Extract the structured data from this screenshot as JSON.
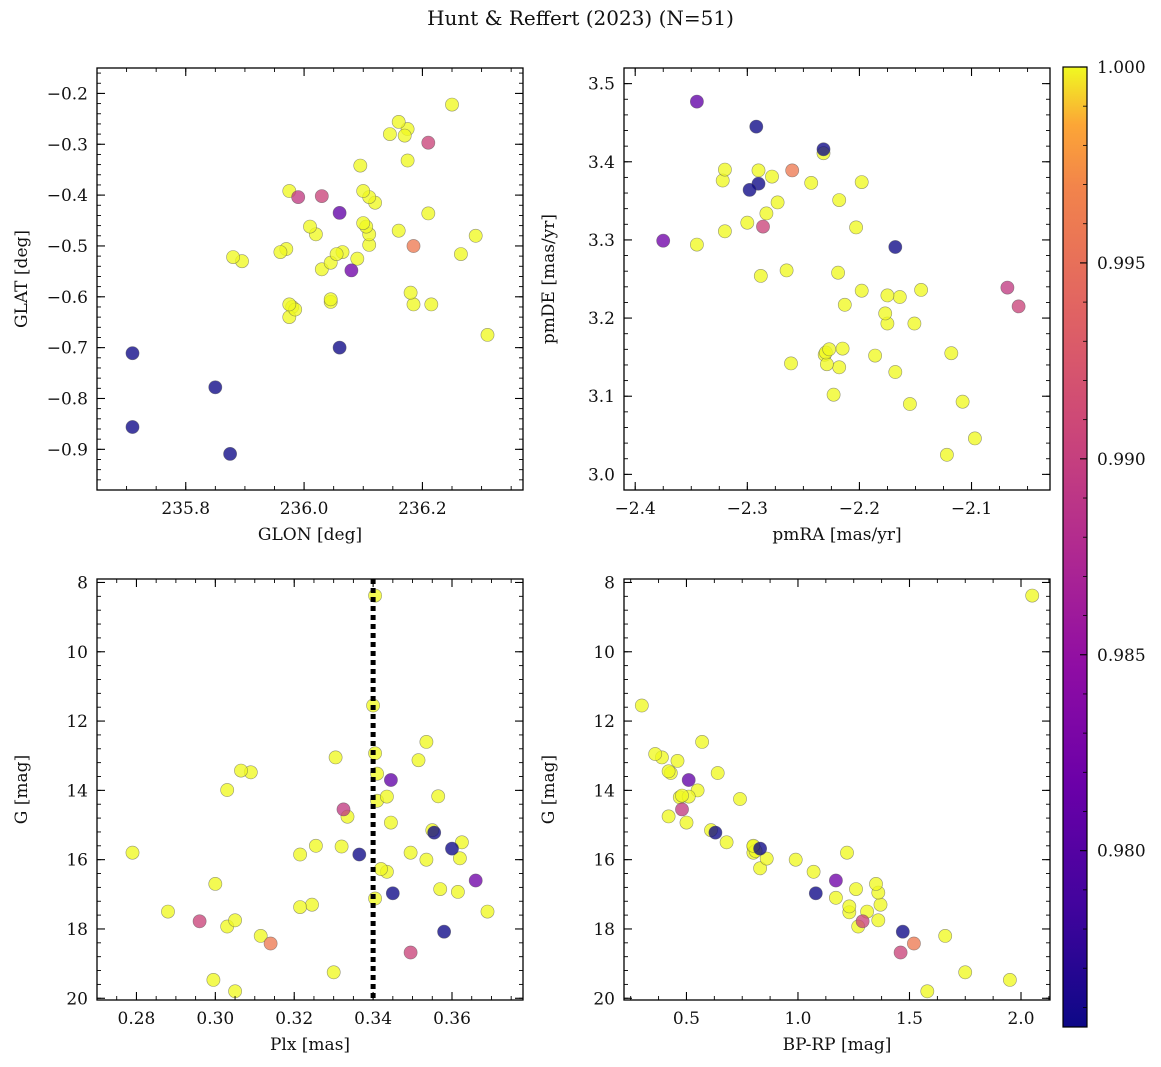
{
  "figure": {
    "title": "Hunt & Reffert (2023) (N=51)"
  },
  "colorbar": {
    "min": 0.9755,
    "max": 1.0,
    "ticks": [
      "0.980",
      "0.985",
      "0.990",
      "0.995",
      "1.000"
    ],
    "tick_values": [
      0.98,
      0.985,
      0.99,
      0.995,
      1.0
    ],
    "colormap": "plasma"
  },
  "reference_line": {
    "panel": "plx",
    "x": 0.34,
    "style": "dotted",
    "color": "#000000"
  },
  "chart_data": [
    {
      "id": "pos",
      "type": "scatter",
      "title": "",
      "xlabel": "GLON [deg]",
      "ylabel": "GLAT [deg]",
      "xlim": [
        235.65,
        236.37
      ],
      "ylim": [
        -0.98,
        -0.15
      ],
      "xticks": [
        235.8,
        236.0,
        236.2
      ],
      "xticklabels": [
        "235.8",
        "236.0",
        "236.2"
      ],
      "yticks": [
        -0.9,
        -0.8,
        -0.7,
        -0.6,
        -0.5,
        -0.4,
        -0.3,
        -0.2
      ],
      "yticklabels": [
        "−0.9",
        "−0.8",
        "−0.7",
        "−0.6",
        "−0.5",
        "−0.4",
        "−0.3",
        "−0.2"
      ],
      "yinvert": false,
      "points": [
        [
          235.71,
          -0.711
        ],
        [
          235.71,
          -0.856
        ],
        [
          235.85,
          -0.778
        ],
        [
          235.875,
          -0.909
        ],
        [
          236.06,
          -0.7
        ],
        [
          236.06,
          -0.435
        ],
        [
          236.08,
          -0.548
        ],
        [
          235.99,
          -0.404
        ],
        [
          236.03,
          -0.402
        ],
        [
          236.21,
          -0.297
        ],
        [
          236.185,
          -0.5
        ],
        [
          236.25,
          -0.222
        ],
        [
          236.16,
          -0.256
        ],
        [
          236.145,
          -0.28
        ],
        [
          236.17,
          -0.283
        ],
        [
          236.175,
          -0.27
        ],
        [
          236.175,
          -0.332
        ],
        [
          236.095,
          -0.342
        ],
        [
          236.1,
          -0.392
        ],
        [
          236.11,
          -0.404
        ],
        [
          236.12,
          -0.415
        ],
        [
          235.975,
          -0.392
        ],
        [
          236.1,
          -0.455
        ],
        [
          236.105,
          -0.462
        ],
        [
          236.11,
          -0.477
        ],
        [
          236.11,
          -0.498
        ],
        [
          236.01,
          -0.462
        ],
        [
          236.02,
          -0.477
        ],
        [
          236.16,
          -0.47
        ],
        [
          236.21,
          -0.436
        ],
        [
          236.265,
          -0.516
        ],
        [
          236.29,
          -0.48
        ],
        [
          235.88,
          -0.522
        ],
        [
          235.895,
          -0.53
        ],
        [
          235.96,
          -0.512
        ],
        [
          235.97,
          -0.506
        ],
        [
          236.055,
          -0.516
        ],
        [
          236.065,
          -0.512
        ],
        [
          236.09,
          -0.525
        ],
        [
          236.045,
          -0.533
        ],
        [
          236.03,
          -0.546
        ],
        [
          236.18,
          -0.592
        ],
        [
          236.185,
          -0.615
        ],
        [
          236.215,
          -0.615
        ],
        [
          236.31,
          -0.675
        ],
        [
          236.045,
          -0.605
        ],
        [
          236.045,
          -0.61
        ],
        [
          235.975,
          -0.615
        ],
        [
          235.985,
          -0.625
        ],
        [
          235.975,
          -0.64
        ],
        [
          235.98,
          -0.62
        ]
      ],
      "c": [
        0.9755,
        0.9755,
        0.9755,
        0.9755,
        0.9755,
        0.981,
        0.982,
        0.9895,
        0.9905,
        0.9905,
        0.996,
        1,
        1,
        1,
        1,
        1,
        1,
        1,
        1,
        1,
        1,
        1,
        1,
        1,
        1,
        1,
        1,
        1,
        1,
        1,
        1,
        1,
        1,
        1,
        1,
        1,
        1,
        1,
        1,
        1,
        1,
        1,
        1,
        1,
        1,
        1,
        1,
        1,
        1,
        1,
        1
      ]
    },
    {
      "id": "pm",
      "type": "scatter",
      "title": "",
      "xlabel": "pmRA [mas/yr]",
      "ylabel": "pmDE [mas/yr]",
      "xlim": [
        -2.41,
        -2.03
      ],
      "ylim": [
        2.98,
        3.52
      ],
      "xticks": [
        -2.4,
        -2.3,
        -2.2,
        -2.1
      ],
      "xticklabels": [
        "−2.4",
        "−2.3",
        "−2.2",
        "−2.1"
      ],
      "yticks": [
        3.0,
        3.1,
        3.2,
        3.3,
        3.4,
        3.5
      ],
      "yticklabels": [
        "3.0",
        "3.1",
        "3.2",
        "3.3",
        "3.4",
        "3.5"
      ],
      "yinvert": false,
      "points": [
        [
          -2.292,
          3.445
        ],
        [
          -2.232,
          3.416
        ],
        [
          -2.298,
          3.364
        ],
        [
          -2.29,
          3.372
        ],
        [
          -2.168,
          3.291
        ],
        [
          -2.345,
          3.477
        ],
        [
          -2.375,
          3.299
        ],
        [
          -2.286,
          3.317
        ],
        [
          -2.068,
          3.239
        ],
        [
          -2.058,
          3.215
        ],
        [
          -2.26,
          3.389
        ],
        [
          -2.32,
          3.39
        ],
        [
          -2.322,
          3.376
        ],
        [
          -2.29,
          3.389
        ],
        [
          -2.278,
          3.381
        ],
        [
          -2.232,
          3.411
        ],
        [
          -2.243,
          3.373
        ],
        [
          -2.198,
          3.374
        ],
        [
          -2.218,
          3.351
        ],
        [
          -2.273,
          3.348
        ],
        [
          -2.283,
          3.334
        ],
        [
          -2.3,
          3.322
        ],
        [
          -2.32,
          3.311
        ],
        [
          -2.345,
          3.294
        ],
        [
          -2.203,
          3.316
        ],
        [
          -2.288,
          3.254
        ],
        [
          -2.265,
          3.261
        ],
        [
          -2.219,
          3.258
        ],
        [
          -2.198,
          3.235
        ],
        [
          -2.213,
          3.217
        ],
        [
          -2.175,
          3.229
        ],
        [
          -2.164,
          3.227
        ],
        [
          -2.145,
          3.236
        ],
        [
          -2.177,
          3.206
        ],
        [
          -2.175,
          3.193
        ],
        [
          -2.151,
          3.193
        ],
        [
          -2.227,
          3.16
        ],
        [
          -2.215,
          3.161
        ],
        [
          -2.23,
          3.156
        ],
        [
          -2.261,
          3.142
        ],
        [
          -2.229,
          3.141
        ],
        [
          -2.218,
          3.137
        ],
        [
          -2.186,
          3.152
        ],
        [
          -2.118,
          3.155
        ],
        [
          -2.168,
          3.131
        ],
        [
          -2.223,
          3.102
        ],
        [
          -2.155,
          3.09
        ],
        [
          -2.108,
          3.093
        ],
        [
          -2.122,
          3.025
        ],
        [
          -2.097,
          3.046
        ],
        [
          -2.231,
          3.153
        ]
      ],
      "c": [
        0.9755,
        0.9755,
        0.9755,
        0.9755,
        0.9755,
        0.981,
        0.982,
        0.9905,
        0.9895,
        0.9905,
        0.996,
        1,
        1,
        1,
        1,
        1,
        1,
        1,
        1,
        1,
        1,
        1,
        1,
        1,
        1,
        1,
        1,
        1,
        1,
        1,
        1,
        1,
        1,
        1,
        1,
        1,
        1,
        1,
        1,
        1,
        1,
        1,
        1,
        1,
        1,
        1,
        1,
        1,
        1,
        1,
        1
      ]
    },
    {
      "id": "plx",
      "type": "scatter",
      "title": "",
      "xlabel": "Plx [mas]",
      "ylabel": "G [mag]",
      "xlim": [
        0.27,
        0.378
      ],
      "ylim": [
        20.05,
        7.9
      ],
      "xticks": [
        0.28,
        0.3,
        0.32,
        0.34,
        0.36
      ],
      "xticklabels": [
        "0.28",
        "0.30",
        "0.32",
        "0.34",
        "0.36"
      ],
      "yticks": [
        8,
        10,
        12,
        14,
        16,
        18,
        20
      ],
      "yticklabels": [
        "8",
        "10",
        "12",
        "14",
        "16",
        "18",
        "20"
      ],
      "yinvert": true,
      "points": [
        [
          0.3365,
          15.85
        ],
        [
          0.345,
          16.97
        ],
        [
          0.3555,
          15.22
        ],
        [
          0.36,
          15.68
        ],
        [
          0.358,
          18.08
        ],
        [
          0.3445,
          13.7
        ],
        [
          0.366,
          16.6
        ],
        [
          0.3325,
          14.55
        ],
        [
          0.296,
          17.78
        ],
        [
          0.3495,
          18.68
        ],
        [
          0.314,
          18.42
        ],
        [
          0.3405,
          8.38
        ],
        [
          0.34,
          11.55
        ],
        [
          0.3405,
          12.93
        ],
        [
          0.341,
          13.52
        ],
        [
          0.3305,
          13.05
        ],
        [
          0.3535,
          12.6
        ],
        [
          0.3515,
          13.13
        ],
        [
          0.3065,
          13.43
        ],
        [
          0.309,
          13.48
        ],
        [
          0.303,
          13.99
        ],
        [
          0.3435,
          14.18
        ],
        [
          0.3565,
          14.17
        ],
        [
          0.3335,
          14.76
        ],
        [
          0.3445,
          14.93
        ],
        [
          0.355,
          15.15
        ],
        [
          0.3625,
          15.5
        ],
        [
          0.3255,
          15.6
        ],
        [
          0.332,
          15.62
        ],
        [
          0.3495,
          15.8
        ],
        [
          0.3215,
          15.85
        ],
        [
          0.3535,
          16.0
        ],
        [
          0.362,
          15.96
        ],
        [
          0.342,
          16.27
        ],
        [
          0.3435,
          16.35
        ],
        [
          0.279,
          15.8
        ],
        [
          0.3,
          16.7
        ],
        [
          0.357,
          16.85
        ],
        [
          0.3615,
          16.93
        ],
        [
          0.3405,
          17.12
        ],
        [
          0.288,
          17.5
        ],
        [
          0.3215,
          17.37
        ],
        [
          0.3245,
          17.3
        ],
        [
          0.369,
          17.5
        ],
        [
          0.305,
          17.75
        ],
        [
          0.303,
          17.93
        ],
        [
          0.3115,
          18.2
        ],
        [
          0.33,
          19.25
        ],
        [
          0.2995,
          19.47
        ],
        [
          0.305,
          19.8
        ],
        [
          0.341,
          14.3
        ]
      ],
      "c": [
        0.9755,
        0.9755,
        0.9755,
        0.9755,
        0.9755,
        0.981,
        0.982,
        0.9895,
        0.9905,
        0.9905,
        0.996,
        1,
        1,
        1,
        1,
        1,
        1,
        1,
        1,
        1,
        1,
        1,
        1,
        1,
        1,
        1,
        1,
        1,
        1,
        1,
        1,
        1,
        1,
        1,
        1,
        1,
        1,
        1,
        1,
        1,
        1,
        1,
        1,
        1,
        1,
        1,
        1,
        1,
        1,
        1,
        1
      ]
    },
    {
      "id": "cmd",
      "type": "scatter",
      "title": "",
      "xlabel": "BP-RP [mag]",
      "ylabel": "G [mag]",
      "xlim": [
        0.22,
        2.13
      ],
      "ylim": [
        20.05,
        7.9
      ],
      "xticks": [
        0.5,
        1.0,
        1.5,
        2.0
      ],
      "xticklabels": [
        "0.5",
        "1.0",
        "1.5",
        "2.0"
      ],
      "yticks": [
        8,
        10,
        12,
        14,
        16,
        18,
        20
      ],
      "yticklabels": [
        "8",
        "10",
        "12",
        "14",
        "16",
        "18",
        "20"
      ],
      "yinvert": true,
      "points": [
        [
          0.63,
          15.22
        ],
        [
          0.83,
          15.68
        ],
        [
          1.08,
          16.97
        ],
        [
          1.47,
          18.08
        ],
        [
          0.51,
          13.7
        ],
        [
          1.17,
          16.6
        ],
        [
          0.48,
          14.55
        ],
        [
          1.29,
          17.78
        ],
        [
          1.46,
          18.68
        ],
        [
          1.52,
          18.42
        ],
        [
          2.05,
          8.38
        ],
        [
          0.3,
          11.55
        ],
        [
          0.57,
          12.6
        ],
        [
          0.36,
          12.95
        ],
        [
          0.39,
          13.05
        ],
        [
          0.46,
          13.15
        ],
        [
          0.42,
          13.45
        ],
        [
          0.43,
          13.5
        ],
        [
          0.64,
          13.5
        ],
        [
          0.48,
          14.15
        ],
        [
          0.51,
          14.18
        ],
        [
          0.55,
          14.0
        ],
        [
          0.74,
          14.25
        ],
        [
          0.42,
          14.75
        ],
        [
          0.5,
          14.93
        ],
        [
          0.61,
          15.15
        ],
        [
          0.68,
          15.5
        ],
        [
          0.8,
          15.6
        ],
        [
          0.81,
          15.75
        ],
        [
          0.8,
          15.8
        ],
        [
          0.86,
          15.97
        ],
        [
          0.99,
          16.0
        ],
        [
          1.22,
          15.8
        ],
        [
          1.07,
          16.35
        ],
        [
          0.83,
          16.25
        ],
        [
          1.26,
          16.85
        ],
        [
          1.35,
          16.7
        ],
        [
          1.36,
          16.95
        ],
        [
          1.17,
          17.1
        ],
        [
          1.37,
          17.3
        ],
        [
          1.23,
          17.35
        ],
        [
          1.23,
          17.52
        ],
        [
          1.31,
          17.5
        ],
        [
          1.36,
          17.75
        ],
        [
          1.27,
          17.93
        ],
        [
          1.66,
          18.2
        ],
        [
          1.75,
          19.25
        ],
        [
          1.95,
          19.47
        ],
        [
          1.58,
          19.8
        ],
        [
          0.47,
          14.2
        ],
        [
          0.8,
          15.62
        ]
      ],
      "c": [
        0.9755,
        0.9755,
        0.9755,
        0.9755,
        0.981,
        0.982,
        0.9895,
        0.9905,
        0.9905,
        0.996,
        1,
        1,
        1,
        1,
        1,
        1,
        1,
        1,
        1,
        1,
        1,
        1,
        1,
        1,
        1,
        1,
        1,
        1,
        1,
        1,
        1,
        1,
        1,
        1,
        1,
        1,
        1,
        1,
        1,
        1,
        1,
        1,
        1,
        1,
        1,
        1,
        1,
        1,
        1,
        1,
        1
      ]
    }
  ]
}
